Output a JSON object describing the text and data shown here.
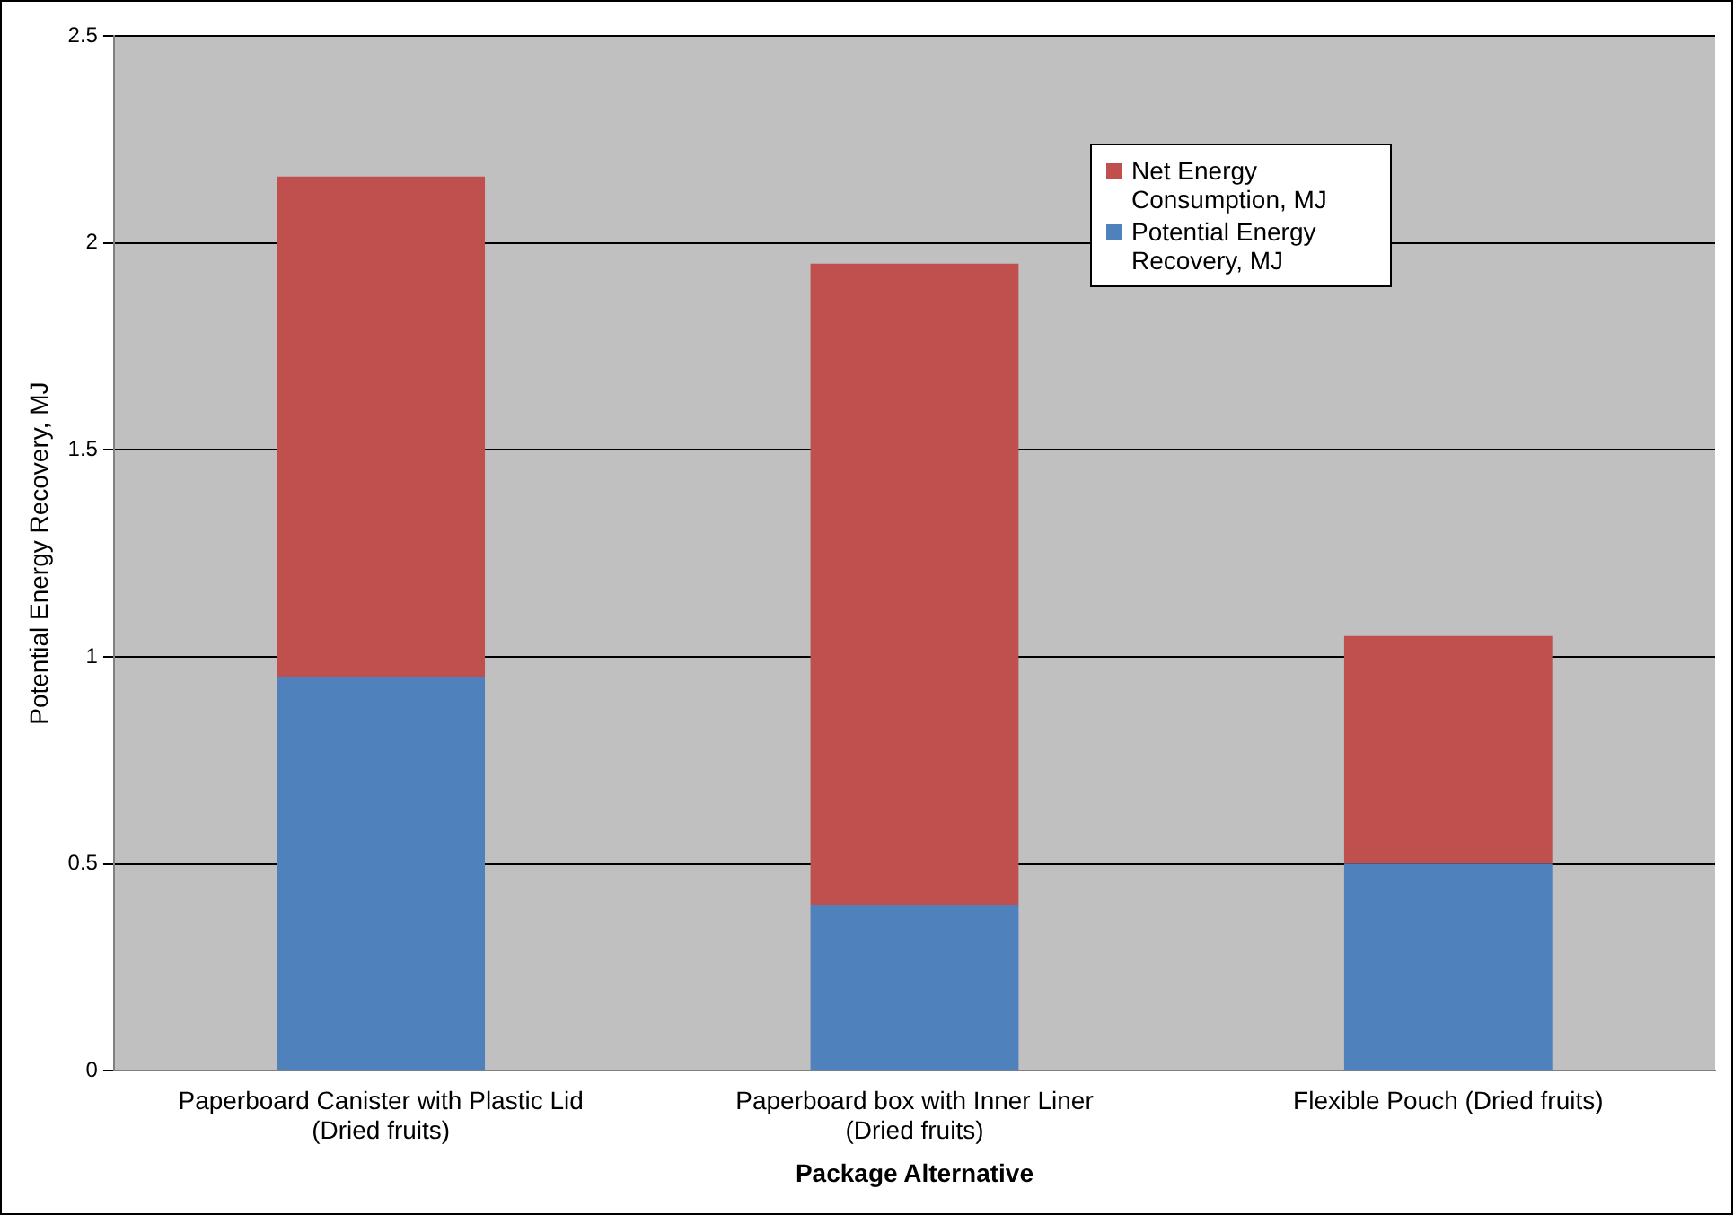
{
  "chart_data": {
    "type": "bar",
    "xlabel": "Package Alternative",
    "ylabel": "Potential Energy Recovery, MJ",
    "categories": [
      "Paperboard Canister with Plastic Lid (Dried fruits)",
      "Paperboard box with Inner Liner (Dried fruits)",
      "Flexible Pouch (Dried fruits)"
    ],
    "stacked": true,
    "series": [
      {
        "name": "Potential Energy Recovery, MJ",
        "color": "#4f81bd",
        "values": [
          0.95,
          0.4,
          0.5
        ]
      },
      {
        "name": "Net Energy Consumption, MJ",
        "color": "#c0504d",
        "values": [
          1.21,
          1.55,
          0.55
        ]
      }
    ],
    "ylim": [
      0,
      2.5
    ],
    "yticks": [
      0,
      0.5,
      1,
      1.5,
      2,
      2.5
    ],
    "grid": "y",
    "legend": "top right"
  }
}
